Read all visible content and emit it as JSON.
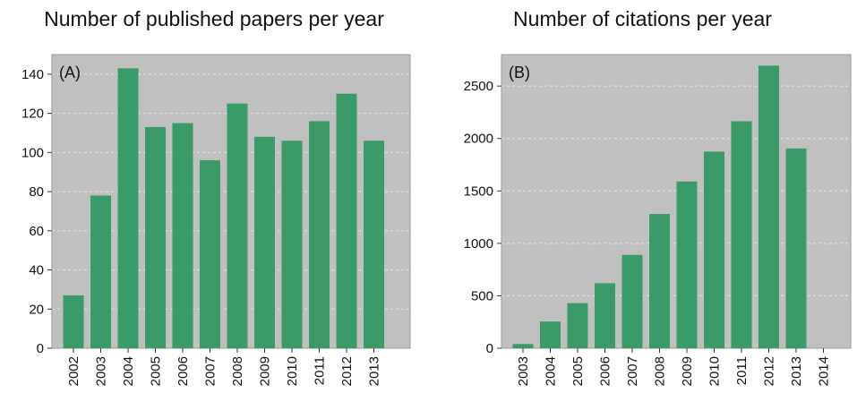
{
  "chart_data": [
    {
      "type": "bar",
      "title": "Number of published papers per year",
      "panel_label": "(A)",
      "categories": [
        "2002",
        "2003",
        "2004",
        "2005",
        "2006",
        "2007",
        "2008",
        "2009",
        "2010",
        "2011",
        "2012",
        "2013"
      ],
      "values": [
        27,
        78,
        143,
        113,
        115,
        96,
        125,
        108,
        106,
        116,
        130,
        106
      ],
      "yticks": [
        0,
        20,
        40,
        60,
        80,
        100,
        120,
        140
      ],
      "ylim": [
        0,
        150
      ],
      "xlabel": "",
      "ylabel": "",
      "grid": true,
      "colors": {
        "bar": "#3a9a68",
        "plot_bg": "#c0c0c0",
        "grid": "#e2e2e2",
        "frame": "#9a9a9a"
      }
    },
    {
      "type": "bar",
      "title": "Number of citations per year",
      "panel_label": "(B)",
      "categories": [
        "2003",
        "2004",
        "2005",
        "2006",
        "2007",
        "2008",
        "2009",
        "2010",
        "2011",
        "2012",
        "2013",
        "2014"
      ],
      "values": [
        40,
        255,
        430,
        620,
        890,
        1280,
        1590,
        1875,
        2165,
        2695,
        1905,
        0
      ],
      "yticks": [
        0,
        500,
        1000,
        1500,
        2000,
        2500
      ],
      "ylim": [
        0,
        2800
      ],
      "xlabel": "",
      "ylabel": "",
      "grid": true,
      "colors": {
        "bar": "#3a9a68",
        "plot_bg": "#c0c0c0",
        "grid": "#e2e2e2",
        "frame": "#9a9a9a"
      }
    }
  ]
}
